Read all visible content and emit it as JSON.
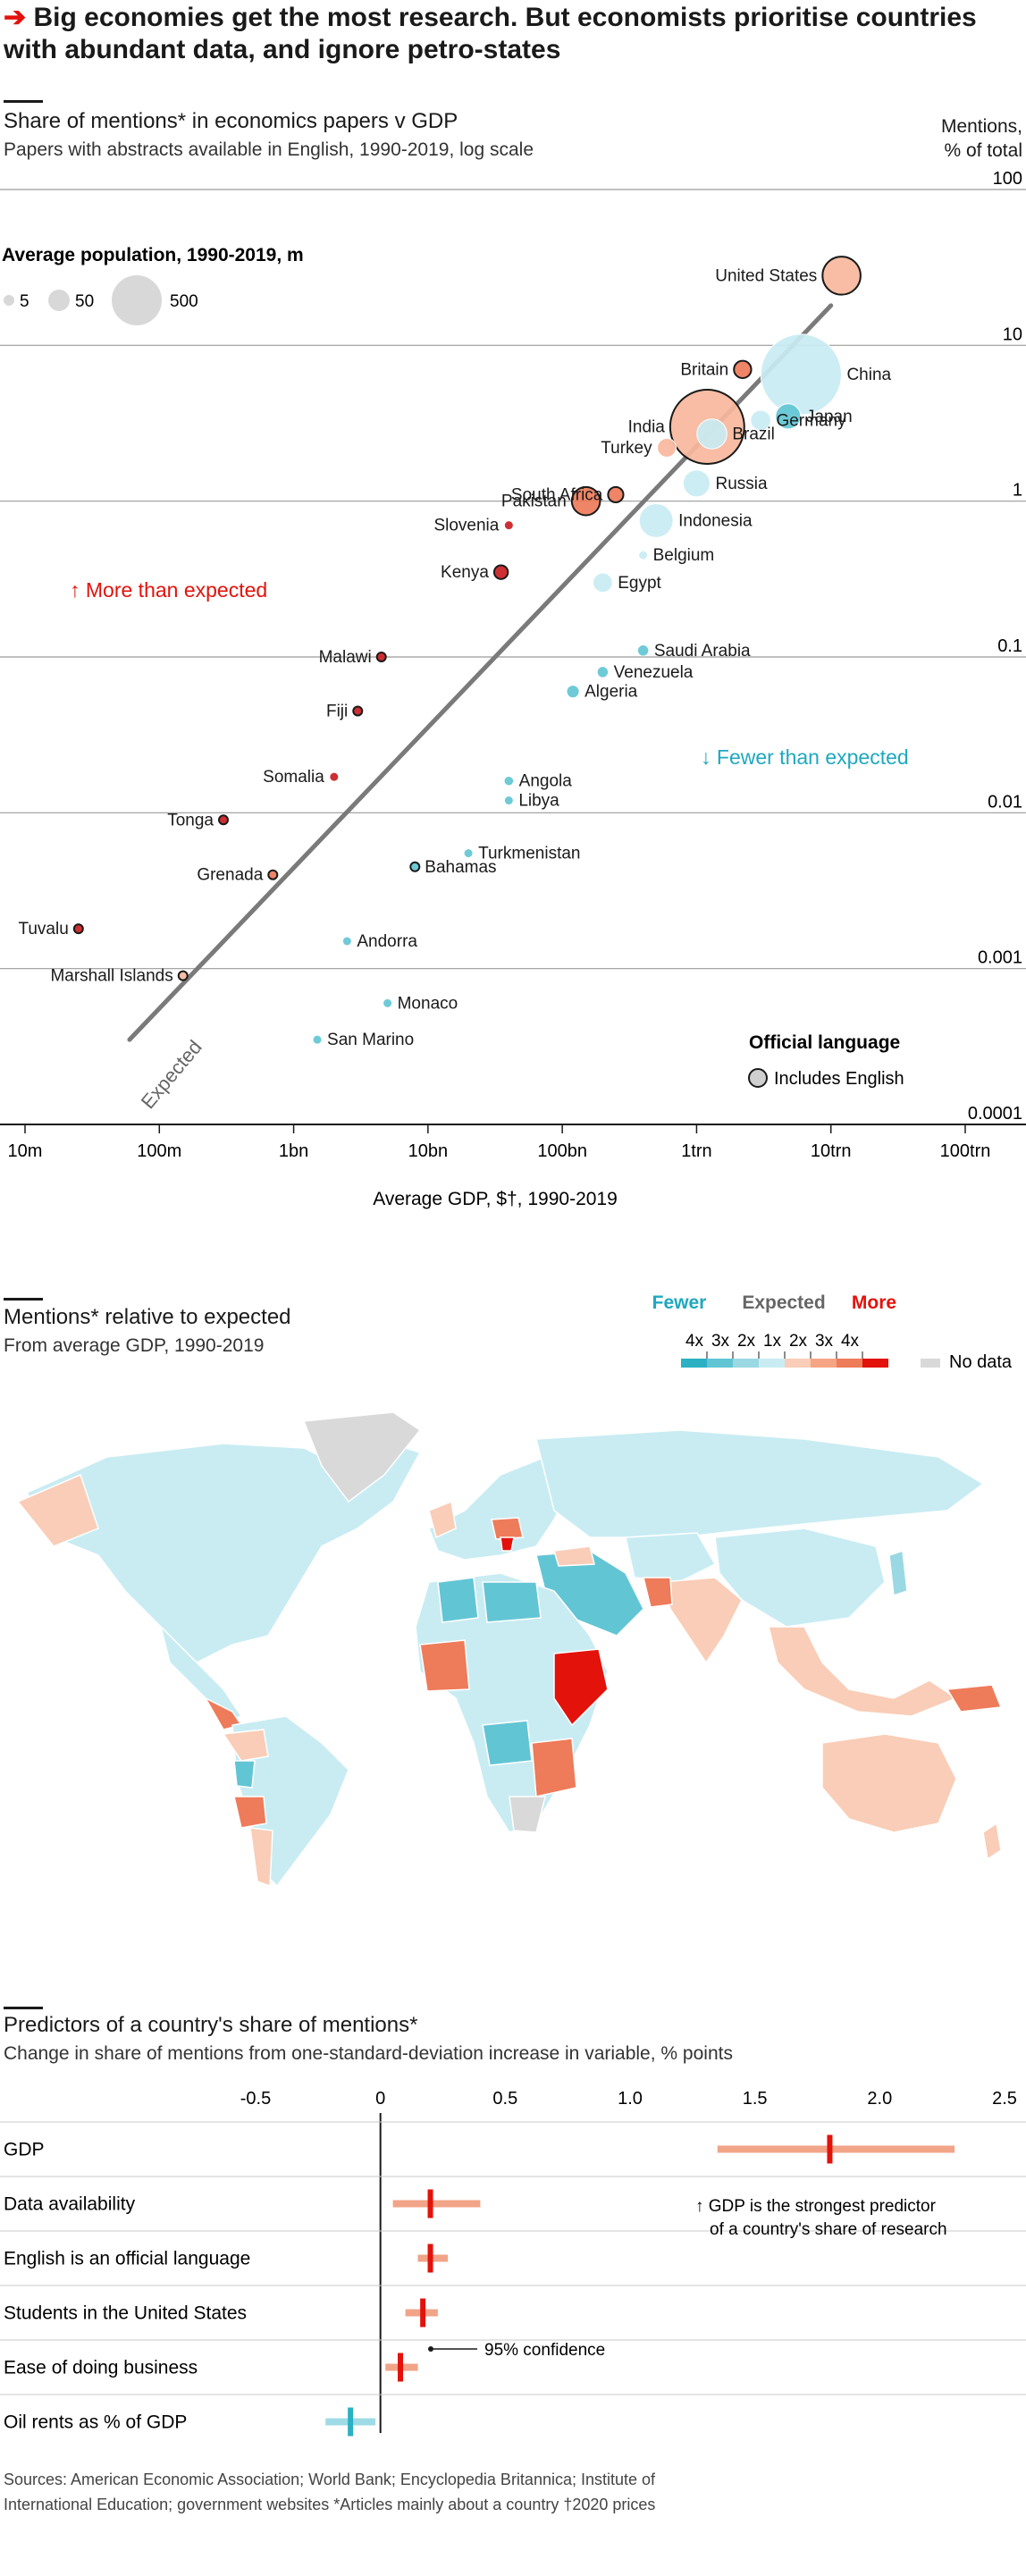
{
  "headline": "Big economies get the most research. But economists prioritise countries with abundant data, and ignore petro-states",
  "scatter": {
    "title": "Share of mentions* in economics papers v GDP",
    "subtitle": "Papers with abstracts available in English, 1990-2019, log scale",
    "ylabel_line1": "Mentions,",
    "ylabel_line2": "% of total",
    "xlabel": "Average GDP, $†, 1990-2019",
    "pop_legend_title": "Average population, 1990-2019, m",
    "pop_legend": [
      "5",
      "50",
      "500"
    ],
    "more_label": "↑ More than expected",
    "fewer_label": "↓ Fewer than expected",
    "expected_label": "Expected",
    "lang_legend_title": "Official language",
    "lang_legend_item": "Includes English",
    "colors": {
      "more_strong": "#c91d22",
      "more": "#ee7b5a",
      "more_light": "#f7b79c",
      "fewer_light": "#c9ecf3",
      "fewer": "#62c5d4",
      "fewer_strong": "#2bb0c4",
      "line": "#7a7a7a"
    }
  },
  "chart_data": [
    {
      "type": "scatter",
      "title": "Share of mentions* in economics papers v GDP",
      "xlabel": "Average GDP, $†, 1990-2019",
      "ylabel": "Mentions, % of total",
      "xscale": "log",
      "yscale": "log",
      "xlim": [
        10000000,
        100000000000000
      ],
      "ylim": [
        0.0001,
        100
      ],
      "x_ticks": [
        "10m",
        "100m",
        "1bn",
        "10bn",
        "100bn",
        "1trn",
        "10trn",
        "100trn"
      ],
      "y_ticks": [
        "100",
        "10",
        "1",
        "0.1",
        "0.01",
        "0.001",
        "0.0001"
      ],
      "grid": true,
      "expected_line": [
        [
          60000000,
          0.00035
        ],
        [
          10000000000000,
          18
        ]
      ],
      "labelled_points": [
        {
          "name": "United States",
          "x": 12000000000000,
          "y": 28,
          "pop": 290,
          "cat": "more_light",
          "english": true
        },
        {
          "name": "China",
          "x": 6000000000000,
          "y": 6.5,
          "pop": 1300,
          "cat": "fewer_light",
          "english": false
        },
        {
          "name": "Britain",
          "x": 2200000000000,
          "y": 7,
          "pop": 60,
          "cat": "more",
          "english": true
        },
        {
          "name": "India",
          "x": 1200000000000,
          "y": 3,
          "pop": 1100,
          "cat": "more_light",
          "english": true
        },
        {
          "name": "Japan",
          "x": 4800000000000,
          "y": 3.5,
          "pop": 127,
          "cat": "fewer",
          "english": false
        },
        {
          "name": "Germany",
          "x": 3000000000000,
          "y": 3.3,
          "pop": 82,
          "cat": "fewer_light",
          "english": false
        },
        {
          "name": "Brazil",
          "x": 1300000000000,
          "y": 2.7,
          "pop": 180,
          "cat": "fewer_light",
          "english": false
        },
        {
          "name": "Turkey",
          "x": 600000000000,
          "y": 2.2,
          "pop": 70,
          "cat": "more_light",
          "english": false
        },
        {
          "name": "South Africa",
          "x": 250000000000,
          "y": 1.1,
          "pop": 47,
          "cat": "more",
          "english": true
        },
        {
          "name": "Pakistan",
          "x": 150000000000,
          "y": 1,
          "pop": 160,
          "cat": "more",
          "english": true
        },
        {
          "name": "Russia",
          "x": 1000000000000,
          "y": 1.3,
          "pop": 145,
          "cat": "fewer_light",
          "english": false
        },
        {
          "name": "Indonesia",
          "x": 500000000000,
          "y": 0.75,
          "pop": 230,
          "cat": "fewer_light",
          "english": false
        },
        {
          "name": "Slovenia",
          "x": 40000000000,
          "y": 0.7,
          "pop": 2,
          "cat": "more_strong",
          "english": false
        },
        {
          "name": "Kenya",
          "x": 35000000000,
          "y": 0.35,
          "pop": 38,
          "cat": "more_strong",
          "english": true
        },
        {
          "name": "Belgium",
          "x": 400000000000,
          "y": 0.45,
          "pop": 11,
          "cat": "fewer_light",
          "english": false
        },
        {
          "name": "Egypt",
          "x": 200000000000,
          "y": 0.3,
          "pop": 75,
          "cat": "fewer_light",
          "english": false
        },
        {
          "name": "Saudi Arabia",
          "x": 400000000000,
          "y": 0.11,
          "pop": 25,
          "cat": "fewer",
          "english": false
        },
        {
          "name": "Malawi",
          "x": 4500000000,
          "y": 0.1,
          "pop": 12,
          "cat": "more_strong",
          "english": true
        },
        {
          "name": "Venezuela",
          "x": 200000000000,
          "y": 0.08,
          "pop": 25,
          "cat": "fewer",
          "english": false
        },
        {
          "name": "Fiji",
          "x": 3000000000,
          "y": 0.045,
          "pop": 0.8,
          "cat": "more_strong",
          "english": true
        },
        {
          "name": "Algeria",
          "x": 120000000000,
          "y": 0.06,
          "pop": 32,
          "cat": "fewer",
          "english": false
        },
        {
          "name": "Somalia",
          "x": 2000000000,
          "y": 0.017,
          "pop": 10,
          "cat": "more_strong",
          "english": false
        },
        {
          "name": "Angola",
          "x": 40000000000,
          "y": 0.016,
          "pop": 18,
          "cat": "fewer",
          "english": false
        },
        {
          "name": "Libya",
          "x": 40000000000,
          "y": 0.012,
          "pop": 6,
          "cat": "fewer",
          "english": false
        },
        {
          "name": "Tonga",
          "x": 300000000,
          "y": 0.009,
          "pop": 0.1,
          "cat": "more_strong",
          "english": true
        },
        {
          "name": "Turkmenistan",
          "x": 20000000000,
          "y": 0.0055,
          "pop": 5,
          "cat": "fewer",
          "english": false
        },
        {
          "name": "Grenada",
          "x": 700000000,
          "y": 0.004,
          "pop": 0.1,
          "cat": "more",
          "english": true
        },
        {
          "name": "Bahamas",
          "x": 8000000000,
          "y": 0.0045,
          "pop": 0.3,
          "cat": "fewer",
          "english": true
        },
        {
          "name": "Tuvalu",
          "x": 25000000,
          "y": 0.0018,
          "pop": 0.01,
          "cat": "more_strong",
          "english": true
        },
        {
          "name": "Andorra",
          "x": 2500000000,
          "y": 0.0015,
          "pop": 0.07,
          "cat": "fewer",
          "english": false
        },
        {
          "name": "Marshall Islands",
          "x": 150000000,
          "y": 0.0009,
          "pop": 0.05,
          "cat": "more_light",
          "english": true
        },
        {
          "name": "Monaco",
          "x": 5000000000,
          "y": 0.0006,
          "pop": 0.03,
          "cat": "fewer",
          "english": false
        },
        {
          "name": "San Marino",
          "x": 1500000000,
          "y": 0.00035,
          "pop": 0.03,
          "cat": "fewer",
          "english": false
        }
      ]
    },
    {
      "type": "bar",
      "title": "Predictors of a country's share of mentions*",
      "xlabel": "Change in share of mentions from one-standard-deviation increase in variable, % points",
      "xlim": [
        -0.5,
        2.5
      ],
      "x_ticks": [
        "-0.5",
        "0",
        "0.5",
        "1.0",
        "1.5",
        "2.0",
        "2.5"
      ],
      "series": [
        {
          "values": [
            {
              "label": "GDP",
              "estimate": 1.8,
              "low": 1.35,
              "high": 2.3
            },
            {
              "label": "Data availability",
              "estimate": 0.2,
              "low": 0.05,
              "high": 0.4
            },
            {
              "label": "English is an official language",
              "estimate": 0.2,
              "low": 0.15,
              "high": 0.27
            },
            {
              "label": "Students in the United States",
              "estimate": 0.17,
              "low": 0.1,
              "high": 0.23
            },
            {
              "label": "Ease of doing business",
              "estimate": 0.08,
              "low": 0.02,
              "high": 0.15
            },
            {
              "label": "Oil rents as % of GDP",
              "estimate": -0.12,
              "low": -0.22,
              "high": -0.02
            }
          ]
        }
      ],
      "annotations": [
        "↑ GDP is the strongest predictor of a country's share of research",
        "95% confidence"
      ]
    }
  ],
  "map": {
    "title": "Mentions* relative to expected",
    "subtitle": "From average GDP, 1990-2019",
    "legend_fewer": "Fewer",
    "legend_expected": "Expected",
    "legend_more": "More",
    "legend_ticks": [
      "4x",
      "3x",
      "2x",
      "1x",
      "2x",
      "3x",
      "4x"
    ],
    "no_data": "No data",
    "scale_colors": [
      "#2bb0c4",
      "#62c5d4",
      "#9ad8e3",
      "#c9ecf3",
      "#f9cdb7",
      "#f6a584",
      "#ee7b5a",
      "#e3120b"
    ],
    "no_data_color": "#d9d9d9"
  },
  "predictors": {
    "title": "Predictors of a country's share of mentions*",
    "subtitle": "Change in share of mentions from one-standard-deviation increase in variable, % points",
    "annotation_line1": "↑ GDP is the strongest predictor",
    "annotation_line2": "of a country's share of research",
    "conf_label": "95% confidence"
  },
  "footer": {
    "line1": "Sources: American Economic Association; World Bank; Encyclopedia Britannica; Institute of",
    "line2": "International Education; government websites    *Articles mainly about a country    †2020 prices"
  }
}
